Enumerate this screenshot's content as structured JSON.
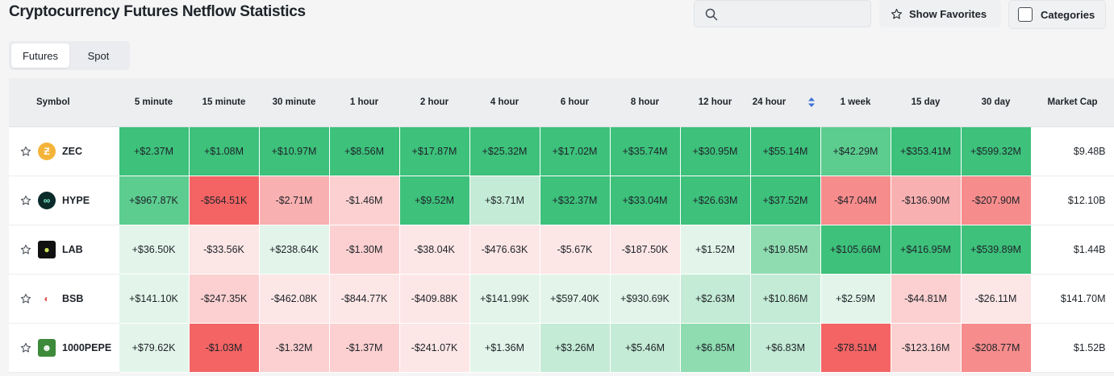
{
  "page_title": "Cryptocurrency Futures Netflow Statistics",
  "search": {
    "placeholder": "",
    "icon": "search-icon"
  },
  "show_favorites_label": "Show Favorites",
  "categories_label": "Categories",
  "tabs": [
    {
      "label": "Futures",
      "active": true
    },
    {
      "label": "Spot",
      "active": false
    }
  ],
  "colors": {
    "g5": "#3dc17b",
    "g4": "#5ccd8f",
    "g3": "#8fdcb1",
    "g2": "#c4ebd5",
    "g1": "#e3f5ea",
    "r1": "#fde6e6",
    "r2": "#fcd0d0",
    "r3": "#f9b0b0",
    "r4": "#f78c8c",
    "r5": "#f46464"
  },
  "columns": {
    "symbol": "Symbol",
    "periods": [
      "5 minute",
      "15 minute",
      "30 minute",
      "1 hour",
      "2 hour",
      "4 hour",
      "6 hour",
      "8 hour",
      "12 hour",
      "24 hour",
      "1 week",
      "15 day",
      "30 day"
    ],
    "market_cap": "Market Cap",
    "sorted_column_index": 9
  },
  "rows": [
    {
      "symbol": "ZEC",
      "icon": "zec-coin-icon",
      "icon_glyph": "Ƶ",
      "icon_bg": "#f4b43a",
      "values": [
        "+$2.37M",
        "+$1.08M",
        "+$10.97M",
        "+$8.56M",
        "+$17.87M",
        "+$25.32M",
        "+$17.02M",
        "+$35.74M",
        "+$30.95M",
        "+$55.14M",
        "+$42.29M",
        "+$353.41M",
        "+$599.32M"
      ],
      "tones": [
        "g5",
        "g5",
        "g5",
        "g5",
        "g5",
        "g5",
        "g5",
        "g5",
        "g5",
        "g5",
        "g4",
        "g5",
        "g5"
      ],
      "market_cap": "$9.48B"
    },
    {
      "symbol": "HYPE",
      "icon": "hype-coin-icon",
      "icon_glyph": "∞",
      "icon_bg": "#0b2a2a",
      "values": [
        "+$967.87K",
        "-$564.51K",
        "-$2.71M",
        "-$1.46M",
        "+$9.52M",
        "+$3.71M",
        "+$32.37M",
        "+$33.04M",
        "+$26.63M",
        "+$37.52M",
        "-$47.04M",
        "-$136.90M",
        "-$207.90M"
      ],
      "tones": [
        "g4",
        "r5",
        "r3",
        "r2",
        "g5",
        "g2",
        "g5",
        "g5",
        "g5",
        "g5",
        "r4",
        "r3",
        "r4"
      ],
      "market_cap": "$12.10B"
    },
    {
      "symbol": "LAB",
      "icon": "lab-coin-icon",
      "icon_glyph": "●",
      "icon_bg": "#111111",
      "values": [
        "+$36.50K",
        "-$33.56K",
        "+$238.64K",
        "-$1.30M",
        "-$38.04K",
        "-$476.63K",
        "-$5.67K",
        "-$187.50K",
        "+$1.52M",
        "+$19.85M",
        "+$105.66M",
        "+$416.95M",
        "+$539.89M"
      ],
      "tones": [
        "g1",
        "r1",
        "g1",
        "r2",
        "r1",
        "r1",
        "r1",
        "r1",
        "g1",
        "g3",
        "g5",
        "g5",
        "g5"
      ],
      "market_cap": "$1.44B"
    },
    {
      "symbol": "BSB",
      "icon": "bsb-coin-icon",
      "icon_glyph": "◐",
      "icon_bg": "#ffffff",
      "values": [
        "+$141.10K",
        "-$247.35K",
        "-$462.08K",
        "-$844.77K",
        "-$409.88K",
        "+$141.99K",
        "+$597.40K",
        "+$930.69K",
        "+$2.63M",
        "+$10.86M",
        "+$2.59M",
        "-$44.81M",
        "-$26.11M"
      ],
      "tones": [
        "g1",
        "r2",
        "r1",
        "r1",
        "r1",
        "g1",
        "g1",
        "g1",
        "g2",
        "g2",
        "g1",
        "r2",
        "r1"
      ],
      "market_cap": "$141.70M"
    },
    {
      "symbol": "1000PEPE",
      "icon": "pepe-coin-icon",
      "icon_glyph": "☻",
      "icon_bg": "#3d8a3a",
      "values": [
        "+$79.62K",
        "-$1.03M",
        "-$1.32M",
        "-$1.37M",
        "-$241.07K",
        "+$1.36M",
        "+$3.26M",
        "+$5.46M",
        "+$6.85M",
        "+$6.83M",
        "-$78.51M",
        "-$123.16M",
        "-$208.77M"
      ],
      "tones": [
        "g1",
        "r5",
        "r2",
        "r2",
        "r1",
        "g1",
        "g2",
        "g2",
        "g3",
        "g2",
        "r5",
        "r2",
        "r4"
      ],
      "market_cap": "$1.52B"
    }
  ]
}
